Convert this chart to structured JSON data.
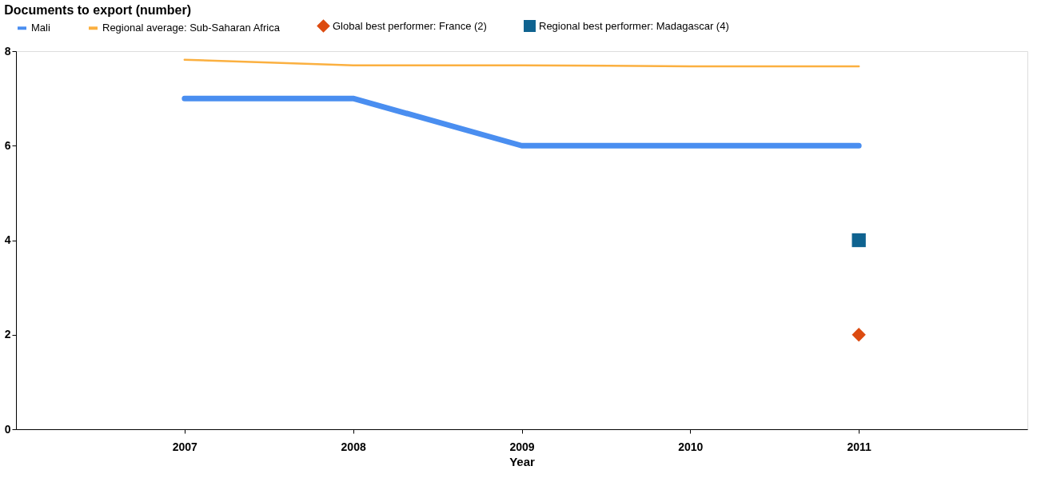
{
  "chart_data": {
    "type": "line",
    "title": "Documents to export (number)",
    "xlabel": "Year",
    "x": [
      2007,
      2008,
      2009,
      2010,
      2011
    ],
    "series": [
      {
        "name": "Mali",
        "color": "#4a8ef0",
        "values": [
          7,
          7,
          6,
          6,
          6
        ]
      },
      {
        "name": "Regional average: Sub-Saharan Africa",
        "color": "#fbb040",
        "values": [
          7.82,
          7.7,
          7.7,
          7.68,
          7.68
        ]
      },
      {
        "name": "Global best performer: France (2)",
        "type": "scatter",
        "marker": "diamond",
        "color": "#dc4b10",
        "x": [
          2011
        ],
        "values": [
          2
        ]
      },
      {
        "name": "Regional best performer: Madagascar (4)",
        "type": "scatter",
        "marker": "square",
        "color": "#0f6390",
        "x": [
          2011
        ],
        "values": [
          4
        ]
      }
    ],
    "xlim": [
      2006,
      2012
    ],
    "xticks": [
      2007,
      2008,
      2009,
      2010,
      2011
    ],
    "ylim": [
      0,
      8
    ],
    "yticks": [
      0,
      2,
      4,
      6,
      8
    ],
    "grid": false,
    "legend": "top",
    "line_style": "solid"
  }
}
